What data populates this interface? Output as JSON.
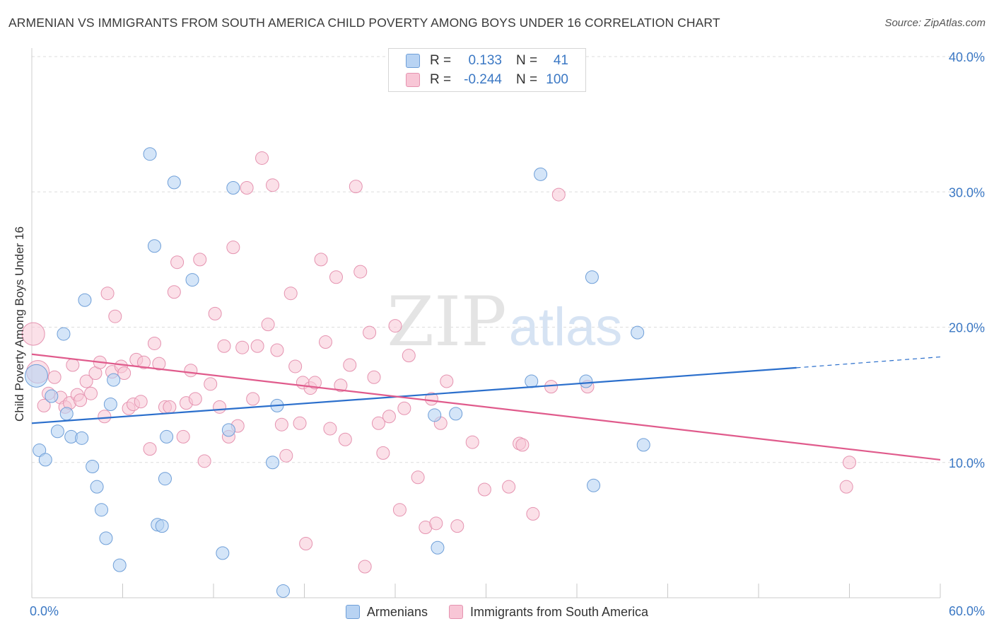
{
  "title": "ARMENIAN VS IMMIGRANTS FROM SOUTH AMERICA CHILD POVERTY AMONG BOYS UNDER 16 CORRELATION CHART",
  "source": "Source: ZipAtlas.com",
  "watermark": {
    "zip": "ZIP",
    "atlas": "atlas"
  },
  "legend_stats": [
    {
      "r_label": "R =",
      "r_value": "0.133",
      "n_label": "N =",
      "n_value": "41"
    },
    {
      "r_label": "R =",
      "r_value": "-0.244",
      "n_label": "N =",
      "n_value": "100"
    }
  ],
  "colors": {
    "armenians_fill": "#b8d3f3",
    "armenians_stroke": "#6f9fd8",
    "armenians_line": "#2b6fcc",
    "immigrants_fill": "#f8c6d6",
    "immigrants_stroke": "#e593b0",
    "immigrants_line": "#e05b8c",
    "grid": "#dddddd",
    "tick_label": "#3b78c4"
  },
  "chart_data": {
    "type": "scatter",
    "xlabel": "",
    "ylabel": "Child Poverty Among Boys Under 16",
    "xlim": [
      0,
      60
    ],
    "ylim": [
      0,
      40
    ],
    "x_tick_labels": [
      {
        "value": 0,
        "label": "0.0%"
      },
      {
        "value": 60,
        "label": "60.0%"
      }
    ],
    "y_tick_labels": [
      {
        "value": 10,
        "label": "10.0%"
      },
      {
        "value": 20,
        "label": "20.0%"
      },
      {
        "value": 30,
        "label": "30.0%"
      },
      {
        "value": 40,
        "label": "40.0%"
      }
    ],
    "grid": "horizontal dashed",
    "legend": "bottom-center",
    "series": [
      {
        "name": "Armenians",
        "r": 0.133,
        "n": 41,
        "trend": {
          "x0": 0,
          "y0": 12.9,
          "x1": 50.5,
          "y1": 17.0,
          "dash_to_x": 60,
          "dash_to_y": 17.8
        },
        "points": [
          [
            0.3,
            16.4
          ],
          [
            0.5,
            10.9
          ],
          [
            0.9,
            10.2
          ],
          [
            1.3,
            14.9
          ],
          [
            1.7,
            12.3
          ],
          [
            2.1,
            19.5
          ],
          [
            2.3,
            13.6
          ],
          [
            2.6,
            11.9
          ],
          [
            3.3,
            11.8
          ],
          [
            3.5,
            22.0
          ],
          [
            4.0,
            9.7
          ],
          [
            4.3,
            8.2
          ],
          [
            4.6,
            6.5
          ],
          [
            4.9,
            4.4
          ],
          [
            5.2,
            14.3
          ],
          [
            5.4,
            16.1
          ],
          [
            5.8,
            2.4
          ],
          [
            7.8,
            32.8
          ],
          [
            8.1,
            26.0
          ],
          [
            8.3,
            5.4
          ],
          [
            8.6,
            5.3
          ],
          [
            8.8,
            8.8
          ],
          [
            8.9,
            11.9
          ],
          [
            9.4,
            30.7
          ],
          [
            10.6,
            23.5
          ],
          [
            12.6,
            3.3
          ],
          [
            13.0,
            12.4
          ],
          [
            13.3,
            30.3
          ],
          [
            15.9,
            10.0
          ],
          [
            16.2,
            14.2
          ],
          [
            16.6,
            0.5
          ],
          [
            26.6,
            13.5
          ],
          [
            26.8,
            3.7
          ],
          [
            28.0,
            13.6
          ],
          [
            33.0,
            16.0
          ],
          [
            33.6,
            31.3
          ],
          [
            36.6,
            16.0
          ],
          [
            37.0,
            23.7
          ],
          [
            37.1,
            8.3
          ],
          [
            40.0,
            19.6
          ],
          [
            40.4,
            11.3
          ]
        ]
      },
      {
        "name": "Immigrants from South America",
        "r": -0.244,
        "n": 100,
        "trend": {
          "x0": 0,
          "y0": 18.0,
          "x1": 60,
          "y1": 10.2
        },
        "points": [
          [
            0.1,
            19.5
          ],
          [
            0.4,
            16.7
          ],
          [
            0.8,
            14.2
          ],
          [
            1.1,
            15.1
          ],
          [
            1.5,
            16.3
          ],
          [
            1.9,
            14.8
          ],
          [
            2.2,
            14.1
          ],
          [
            2.5,
            14.4
          ],
          [
            2.7,
            17.2
          ],
          [
            3.0,
            15.0
          ],
          [
            3.2,
            14.6
          ],
          [
            3.6,
            16.0
          ],
          [
            3.9,
            15.1
          ],
          [
            4.2,
            16.6
          ],
          [
            4.5,
            17.4
          ],
          [
            4.8,
            13.4
          ],
          [
            5.0,
            22.5
          ],
          [
            5.3,
            16.7
          ],
          [
            5.5,
            20.8
          ],
          [
            5.9,
            17.1
          ],
          [
            6.1,
            16.6
          ],
          [
            6.4,
            14.0
          ],
          [
            6.7,
            14.3
          ],
          [
            6.9,
            17.6
          ],
          [
            7.2,
            14.5
          ],
          [
            7.4,
            17.4
          ],
          [
            7.8,
            11.0
          ],
          [
            8.1,
            18.8
          ],
          [
            8.4,
            17.3
          ],
          [
            8.8,
            14.1
          ],
          [
            9.1,
            14.1
          ],
          [
            9.4,
            22.6
          ],
          [
            9.6,
            24.8
          ],
          [
            10.0,
            11.9
          ],
          [
            10.2,
            14.4
          ],
          [
            10.5,
            16.8
          ],
          [
            10.8,
            14.7
          ],
          [
            11.1,
            25.0
          ],
          [
            11.4,
            10.1
          ],
          [
            11.8,
            15.8
          ],
          [
            12.1,
            21.0
          ],
          [
            12.4,
            14.1
          ],
          [
            12.7,
            18.6
          ],
          [
            13.0,
            11.9
          ],
          [
            13.3,
            25.9
          ],
          [
            13.6,
            12.7
          ],
          [
            13.9,
            18.5
          ],
          [
            14.2,
            30.3
          ],
          [
            14.6,
            14.7
          ],
          [
            14.9,
            18.6
          ],
          [
            15.2,
            32.5
          ],
          [
            15.6,
            20.2
          ],
          [
            15.9,
            30.5
          ],
          [
            16.2,
            18.3
          ],
          [
            16.5,
            12.8
          ],
          [
            16.8,
            10.5
          ],
          [
            17.1,
            22.5
          ],
          [
            17.4,
            17.1
          ],
          [
            17.7,
            12.9
          ],
          [
            17.9,
            15.9
          ],
          [
            18.1,
            4.0
          ],
          [
            18.4,
            15.5
          ],
          [
            18.7,
            15.9
          ],
          [
            19.1,
            25.0
          ],
          [
            19.4,
            18.9
          ],
          [
            19.7,
            12.5
          ],
          [
            20.1,
            23.7
          ],
          [
            20.4,
            15.7
          ],
          [
            20.7,
            11.7
          ],
          [
            21.0,
            17.2
          ],
          [
            21.4,
            30.4
          ],
          [
            21.7,
            24.1
          ],
          [
            22.0,
            2.3
          ],
          [
            22.3,
            19.6
          ],
          [
            22.6,
            16.3
          ],
          [
            22.9,
            12.9
          ],
          [
            23.2,
            10.7
          ],
          [
            23.6,
            13.4
          ],
          [
            24.0,
            20.1
          ],
          [
            24.3,
            6.5
          ],
          [
            24.6,
            14.0
          ],
          [
            24.9,
            17.9
          ],
          [
            25.5,
            8.9
          ],
          [
            26.0,
            5.2
          ],
          [
            26.4,
            14.7
          ],
          [
            26.7,
            5.5
          ],
          [
            27.0,
            12.9
          ],
          [
            27.4,
            16.0
          ],
          [
            28.1,
            5.3
          ],
          [
            29.1,
            11.5
          ],
          [
            29.9,
            8.0
          ],
          [
            31.5,
            8.2
          ],
          [
            32.2,
            11.4
          ],
          [
            32.4,
            11.3
          ],
          [
            33.1,
            6.2
          ],
          [
            34.3,
            15.6
          ],
          [
            34.8,
            29.8
          ],
          [
            36.7,
            15.6
          ],
          [
            54.0,
            10.0
          ],
          [
            53.8,
            8.2
          ]
        ]
      }
    ]
  }
}
